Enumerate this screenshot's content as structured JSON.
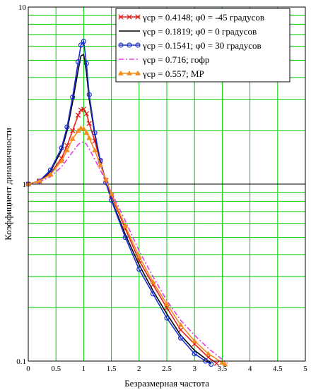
{
  "chart_data": {
    "type": "line",
    "title": "",
    "xlabel": "Безразмерная частота",
    "ylabel": "Коэффициент динамичности",
    "xlim": [
      0,
      5
    ],
    "ylim": [
      0.1,
      10
    ],
    "yscale": "log",
    "grid": true,
    "grid_color": "#00cc00",
    "legend_position": "top-right",
    "x_ticks": [
      "0",
      "0.5",
      "1",
      "1.5",
      "2",
      "2.5",
      "3",
      "3.5",
      "4",
      "4.5",
      "5"
    ],
    "y_ticks": [
      "0.1",
      "1",
      "10"
    ],
    "series": [
      {
        "name": "γcp = 0.4148; φ0 = -45 градусов",
        "color": "#e81c1c",
        "marker": "x",
        "x": [
          0,
          0.2,
          0.4,
          0.6,
          0.7,
          0.8,
          0.9,
          0.95,
          1.0,
          1.05,
          1.1,
          1.2,
          1.3,
          1.4,
          1.5,
          1.75,
          2.0,
          2.25,
          2.5,
          2.75,
          3.0,
          3.25,
          3.4
        ],
        "y": [
          1.0,
          1.04,
          1.15,
          1.4,
          1.65,
          2.0,
          2.45,
          2.62,
          2.65,
          2.5,
          2.2,
          1.75,
          1.35,
          1.05,
          0.86,
          0.56,
          0.37,
          0.27,
          0.2,
          0.15,
          0.125,
          0.105,
          0.097
        ]
      },
      {
        "name": "γcp = 0.1819; φ0 = 0 градусов",
        "color": "#000000",
        "marker": "none",
        "x": [
          0,
          0.2,
          0.4,
          0.6,
          0.7,
          0.8,
          0.9,
          0.95,
          1.0,
          1.05,
          1.1,
          1.2,
          1.3,
          1.4,
          1.5,
          1.75,
          2.0,
          2.25,
          2.5,
          2.75,
          3.0,
          3.2,
          3.3
        ],
        "y": [
          1.0,
          1.04,
          1.18,
          1.55,
          2.0,
          2.9,
          4.4,
          5.3,
          5.4,
          4.3,
          3.0,
          1.9,
          1.35,
          1.02,
          0.82,
          0.52,
          0.35,
          0.25,
          0.185,
          0.14,
          0.115,
          0.103,
          0.097
        ]
      },
      {
        "name": "γcp = 0.1541; φ0 = 30 градусов",
        "color": "#1a2fcf",
        "marker": "o",
        "x": [
          0,
          0.2,
          0.4,
          0.6,
          0.7,
          0.8,
          0.9,
          0.95,
          1.0,
          1.05,
          1.1,
          1.2,
          1.3,
          1.4,
          1.5,
          1.75,
          2.0,
          2.25,
          2.5,
          2.75,
          3.0,
          3.2,
          3.3
        ],
        "y": [
          1.0,
          1.04,
          1.2,
          1.6,
          2.1,
          3.1,
          4.9,
          6.1,
          6.4,
          4.8,
          3.2,
          1.95,
          1.36,
          1.02,
          0.81,
          0.5,
          0.33,
          0.24,
          0.175,
          0.135,
          0.11,
          0.1,
          0.096
        ]
      },
      {
        "name": "γcp = 0.716; гофр",
        "color": "#e040e0",
        "marker": "dashdot",
        "x": [
          0,
          0.2,
          0.4,
          0.6,
          0.7,
          0.8,
          0.9,
          0.95,
          1.0,
          1.05,
          1.1,
          1.2,
          1.3,
          1.4,
          1.5,
          1.75,
          2.0,
          2.25,
          2.5,
          2.75,
          3.0,
          3.25,
          3.5,
          3.6
        ],
        "y": [
          1.0,
          1.03,
          1.1,
          1.25,
          1.38,
          1.52,
          1.67,
          1.72,
          1.73,
          1.68,
          1.58,
          1.38,
          1.2,
          1.04,
          0.9,
          0.62,
          0.42,
          0.3,
          0.22,
          0.17,
          0.14,
          0.118,
          0.102,
          0.097
        ]
      },
      {
        "name": "γcp = 0.557; MP",
        "color": "#f28c1c",
        "marker": "star",
        "x": [
          0,
          0.2,
          0.4,
          0.6,
          0.7,
          0.8,
          0.9,
          0.95,
          1.0,
          1.05,
          1.1,
          1.2,
          1.3,
          1.4,
          1.5,
          1.75,
          2.0,
          2.25,
          2.5,
          2.75,
          3.0,
          3.25,
          3.5,
          3.55
        ],
        "y": [
          1.0,
          1.04,
          1.13,
          1.35,
          1.55,
          1.8,
          2.0,
          2.07,
          2.05,
          1.95,
          1.82,
          1.55,
          1.28,
          1.06,
          0.88,
          0.58,
          0.39,
          0.28,
          0.21,
          0.16,
          0.13,
          0.11,
          0.098,
          0.096
        ]
      }
    ]
  }
}
